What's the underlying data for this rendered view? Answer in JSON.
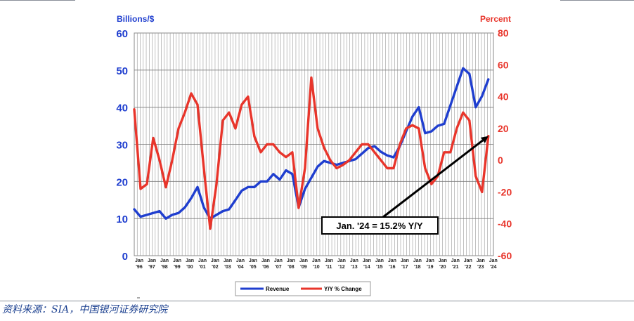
{
  "source_note": "资料来源：SIA，中国银河证券研究院",
  "colors": {
    "revenue": "#1f3ecf",
    "yoy": "#e8352b",
    "left_axis": "#1f3ecf",
    "right_axis": "#e8352b",
    "grid": "#9a9a9a",
    "arrow": "#000000"
  },
  "chart_data": {
    "type": "line",
    "left_axis": {
      "title": "Billions/$",
      "range": [
        0,
        60
      ],
      "ticks": [
        "0",
        "10",
        "20",
        "30",
        "40",
        "50",
        "60"
      ]
    },
    "right_axis": {
      "title": "Percent",
      "range": [
        -60,
        80
      ],
      "ticks": [
        "-60",
        "-40",
        "-20",
        "0",
        "20",
        "40",
        "60",
        "80"
      ]
    },
    "x_ticks": [
      {
        "month": "Jan",
        "year": "'96"
      },
      {
        "month": "Jan",
        "year": "'97"
      },
      {
        "month": "Jan",
        "year": "'98"
      },
      {
        "month": "Jan",
        "year": "'99"
      },
      {
        "month": "Jan",
        "year": "'00"
      },
      {
        "month": "Jan",
        "year": "'01"
      },
      {
        "month": "Jan",
        "year": "'02"
      },
      {
        "month": "Jan",
        "year": "'03"
      },
      {
        "month": "Jan",
        "year": "'04"
      },
      {
        "month": "Jan",
        "year": "'05"
      },
      {
        "month": "Jan",
        "year": "'06"
      },
      {
        "month": "Jan",
        "year": "'07"
      },
      {
        "month": "Jan",
        "year": "'08"
      },
      {
        "month": "Jan",
        "year": "'09"
      },
      {
        "month": "Jan",
        "year": "'10"
      },
      {
        "month": "Jan",
        "year": "'11"
      },
      {
        "month": "Jan",
        "year": "'12"
      },
      {
        "month": "Jan",
        "year": "'13"
      },
      {
        "month": "Jan",
        "year": "'14"
      },
      {
        "month": "Jan",
        "year": "'15"
      },
      {
        "month": "Jan",
        "year": "'16"
      },
      {
        "month": "Jan",
        "year": "'17"
      },
      {
        "month": "Jan",
        "year": "'18"
      },
      {
        "month": "Jan",
        "year": "'19"
      },
      {
        "month": "Jan",
        "year": "'20"
      },
      {
        "month": "Jan",
        "year": "'21"
      },
      {
        "month": "Jan",
        "year": "'22"
      },
      {
        "month": "Jan",
        "year": "'23"
      },
      {
        "month": "Jan",
        "year": "'24"
      }
    ],
    "grid": true,
    "legend_position": "bottom",
    "series": [
      {
        "name": "Revenue",
        "axis": "left",
        "x": [
          1996,
          1996.5,
          1997,
          1997.5,
          1998,
          1998.5,
          1999,
          1999.5,
          2000,
          2000.5,
          2001,
          2001.5,
          2002,
          2002.5,
          2003,
          2003.5,
          2004,
          2004.5,
          2005,
          2005.5,
          2006,
          2006.5,
          2007,
          2007.5,
          2008,
          2008.5,
          2009,
          2009.5,
          2010,
          2010.5,
          2011,
          2011.5,
          2012,
          2012.5,
          2013,
          2013.5,
          2014,
          2014.5,
          2015,
          2015.5,
          2016,
          2016.5,
          2017,
          2017.5,
          2018,
          2018.5,
          2019,
          2019.5,
          2020,
          2020.5,
          2021,
          2021.5,
          2022,
          2022.5,
          2023,
          2023.5,
          2024
        ],
        "values": [
          12.5,
          10.5,
          11,
          11.5,
          12,
          10,
          11,
          11.5,
          13,
          15.5,
          18.5,
          13,
          10,
          11,
          12,
          12.5,
          15,
          17.5,
          18.5,
          18.5,
          20,
          20,
          22,
          20.5,
          23,
          22,
          13,
          18,
          21,
          24,
          25.5,
          25,
          24.5,
          25,
          25.5,
          26,
          27.5,
          29,
          29.5,
          28,
          27,
          26.5,
          29.5,
          33.5,
          37.5,
          40,
          33,
          33.5,
          35,
          35.5,
          40.5,
          45.5,
          50.5,
          49,
          40,
          43,
          47.5
        ]
      },
      {
        "name": "Y/Y % Change",
        "axis": "right",
        "x": [
          1996,
          1996.5,
          1997,
          1997.5,
          1998,
          1998.5,
          1999,
          1999.5,
          2000,
          2000.5,
          2001,
          2001.5,
          2002,
          2002.5,
          2003,
          2003.5,
          2004,
          2004.5,
          2005,
          2005.5,
          2006,
          2006.5,
          2007,
          2007.5,
          2008,
          2008.5,
          2009,
          2009.5,
          2010,
          2010.5,
          2011,
          2011.5,
          2012,
          2012.5,
          2013,
          2013.5,
          2014,
          2014.5,
          2015,
          2015.5,
          2016,
          2016.5,
          2017,
          2017.5,
          2018,
          2018.5,
          2019,
          2019.5,
          2020,
          2020.5,
          2021,
          2021.5,
          2022,
          2022.5,
          2023,
          2023.5,
          2024
        ],
        "values": [
          32,
          -18,
          -15,
          14,
          0,
          -17,
          0,
          20,
          30,
          42,
          35,
          -5,
          -43,
          -15,
          25,
          30,
          20,
          35,
          40,
          15,
          5,
          10,
          10,
          5,
          2,
          5,
          -30,
          -5,
          52,
          20,
          8,
          0,
          -5,
          -3,
          0,
          5,
          10,
          10,
          5,
          0,
          -5,
          -5,
          10,
          20,
          22,
          20,
          -5,
          -15,
          -10,
          5,
          5,
          20,
          30,
          25,
          -10,
          -20,
          15.2
        ]
      }
    ],
    "annotation": {
      "text": "Jan. '24 = 15.2% Y/Y",
      "x": 2024,
      "value": 15.2
    }
  }
}
